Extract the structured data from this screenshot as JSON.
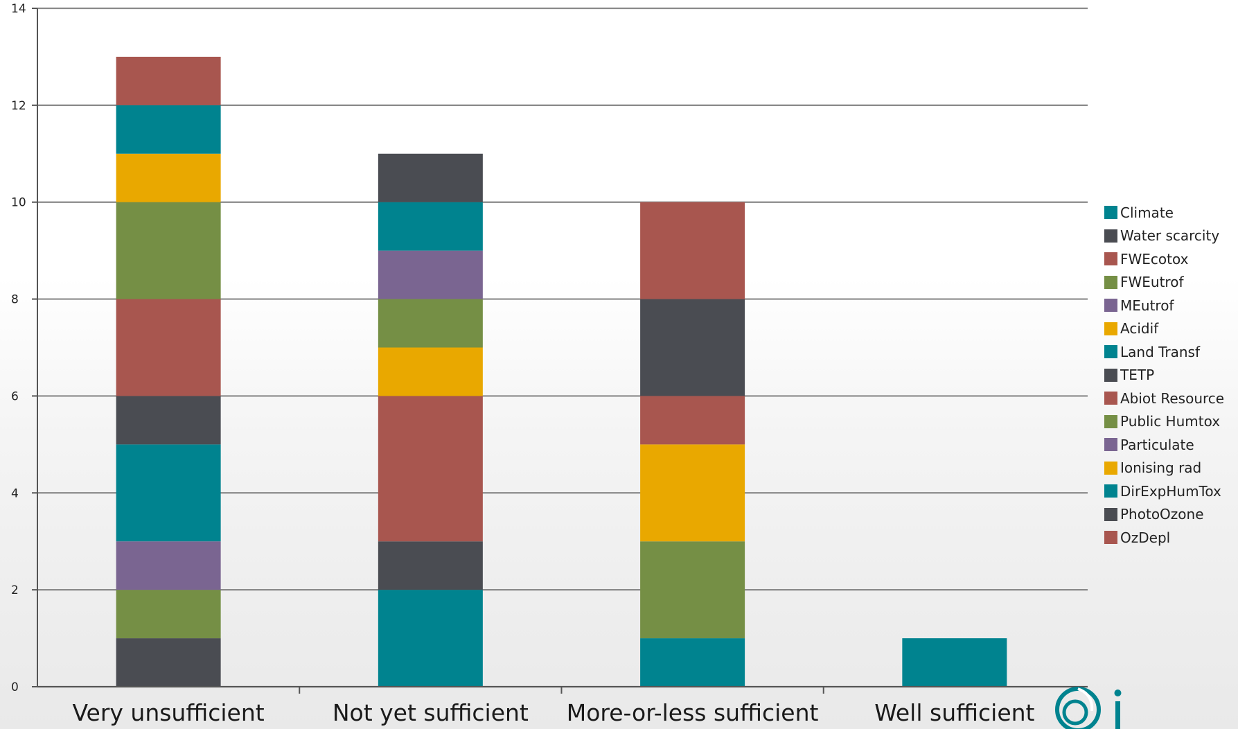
{
  "colors": {
    "teal": "#00838f",
    "dark": "#4a4c52",
    "red": "#a8564f",
    "green": "#758f45",
    "purple": "#7a6591",
    "orange": "#e9a800"
  },
  "legend": [
    {
      "label": "Climate",
      "color": "#00838f"
    },
    {
      "label": "Water scarcity",
      "color": "#4a4c52"
    },
    {
      "label": "FWEcotox",
      "color": "#a8564f"
    },
    {
      "label": "FWEutrof",
      "color": "#758f45"
    },
    {
      "label": "MEutrof",
      "color": "#7a6591"
    },
    {
      "label": "Acidif",
      "color": "#e9a800"
    },
    {
      "label": "Land Transf",
      "color": "#00838f"
    },
    {
      "label": "TETP",
      "color": "#4a4c52"
    },
    {
      "label": "Abiot Resource",
      "color": "#a8564f"
    },
    {
      "label": "Public Humtox",
      "color": "#758f45"
    },
    {
      "label": "Particulate",
      "color": "#7a6591"
    },
    {
      "label": "Ionising rad",
      "color": "#e9a800"
    },
    {
      "label": "DirExpHumTox",
      "color": "#00838f"
    },
    {
      "label": "PhotoOzone",
      "color": "#4a4c52"
    },
    {
      "label": "OzDepl",
      "color": "#a8564f"
    }
  ],
  "chart_data": {
    "type": "bar",
    "stacked": true,
    "categories": [
      "Very unsufficient",
      "Not yet sufficient",
      "More-or-less sufficient",
      "Well sufficient"
    ],
    "ylim": [
      0,
      14
    ],
    "yticks": [
      0,
      2,
      4,
      6,
      8,
      10,
      12,
      14
    ],
    "grid": true,
    "legend_position": "right",
    "stacks": [
      [
        {
          "value": 1,
          "color": "#4a4c52"
        },
        {
          "value": 1,
          "color": "#758f45"
        },
        {
          "value": 1,
          "color": "#7a6591"
        },
        {
          "value": 2,
          "color": "#00838f"
        },
        {
          "value": 1,
          "color": "#4a4c52"
        },
        {
          "value": 2,
          "color": "#a8564f"
        },
        {
          "value": 2,
          "color": "#758f45"
        },
        {
          "value": 1,
          "color": "#e9a800"
        },
        {
          "value": 1,
          "color": "#00838f"
        },
        {
          "value": 1,
          "color": "#a8564f"
        }
      ],
      [
        {
          "value": 2,
          "color": "#00838f"
        },
        {
          "value": 1,
          "color": "#4a4c52"
        },
        {
          "value": 3,
          "color": "#a8564f"
        },
        {
          "value": 1,
          "color": "#e9a800"
        },
        {
          "value": 1,
          "color": "#758f45"
        },
        {
          "value": 1,
          "color": "#7a6591"
        },
        {
          "value": 1,
          "color": "#00838f"
        },
        {
          "value": 1,
          "color": "#4a4c52"
        }
      ],
      [
        {
          "value": 1,
          "color": "#00838f"
        },
        {
          "value": 2,
          "color": "#758f45"
        },
        {
          "value": 2,
          "color": "#e9a800"
        },
        {
          "value": 1,
          "color": "#a8564f"
        },
        {
          "value": 2,
          "color": "#4a4c52"
        },
        {
          "value": 2,
          "color": "#a8564f"
        }
      ],
      [
        {
          "value": 1,
          "color": "#00838f"
        }
      ]
    ]
  },
  "logo": {
    "name": "ciraig-logo",
    "color": "#00838f"
  }
}
